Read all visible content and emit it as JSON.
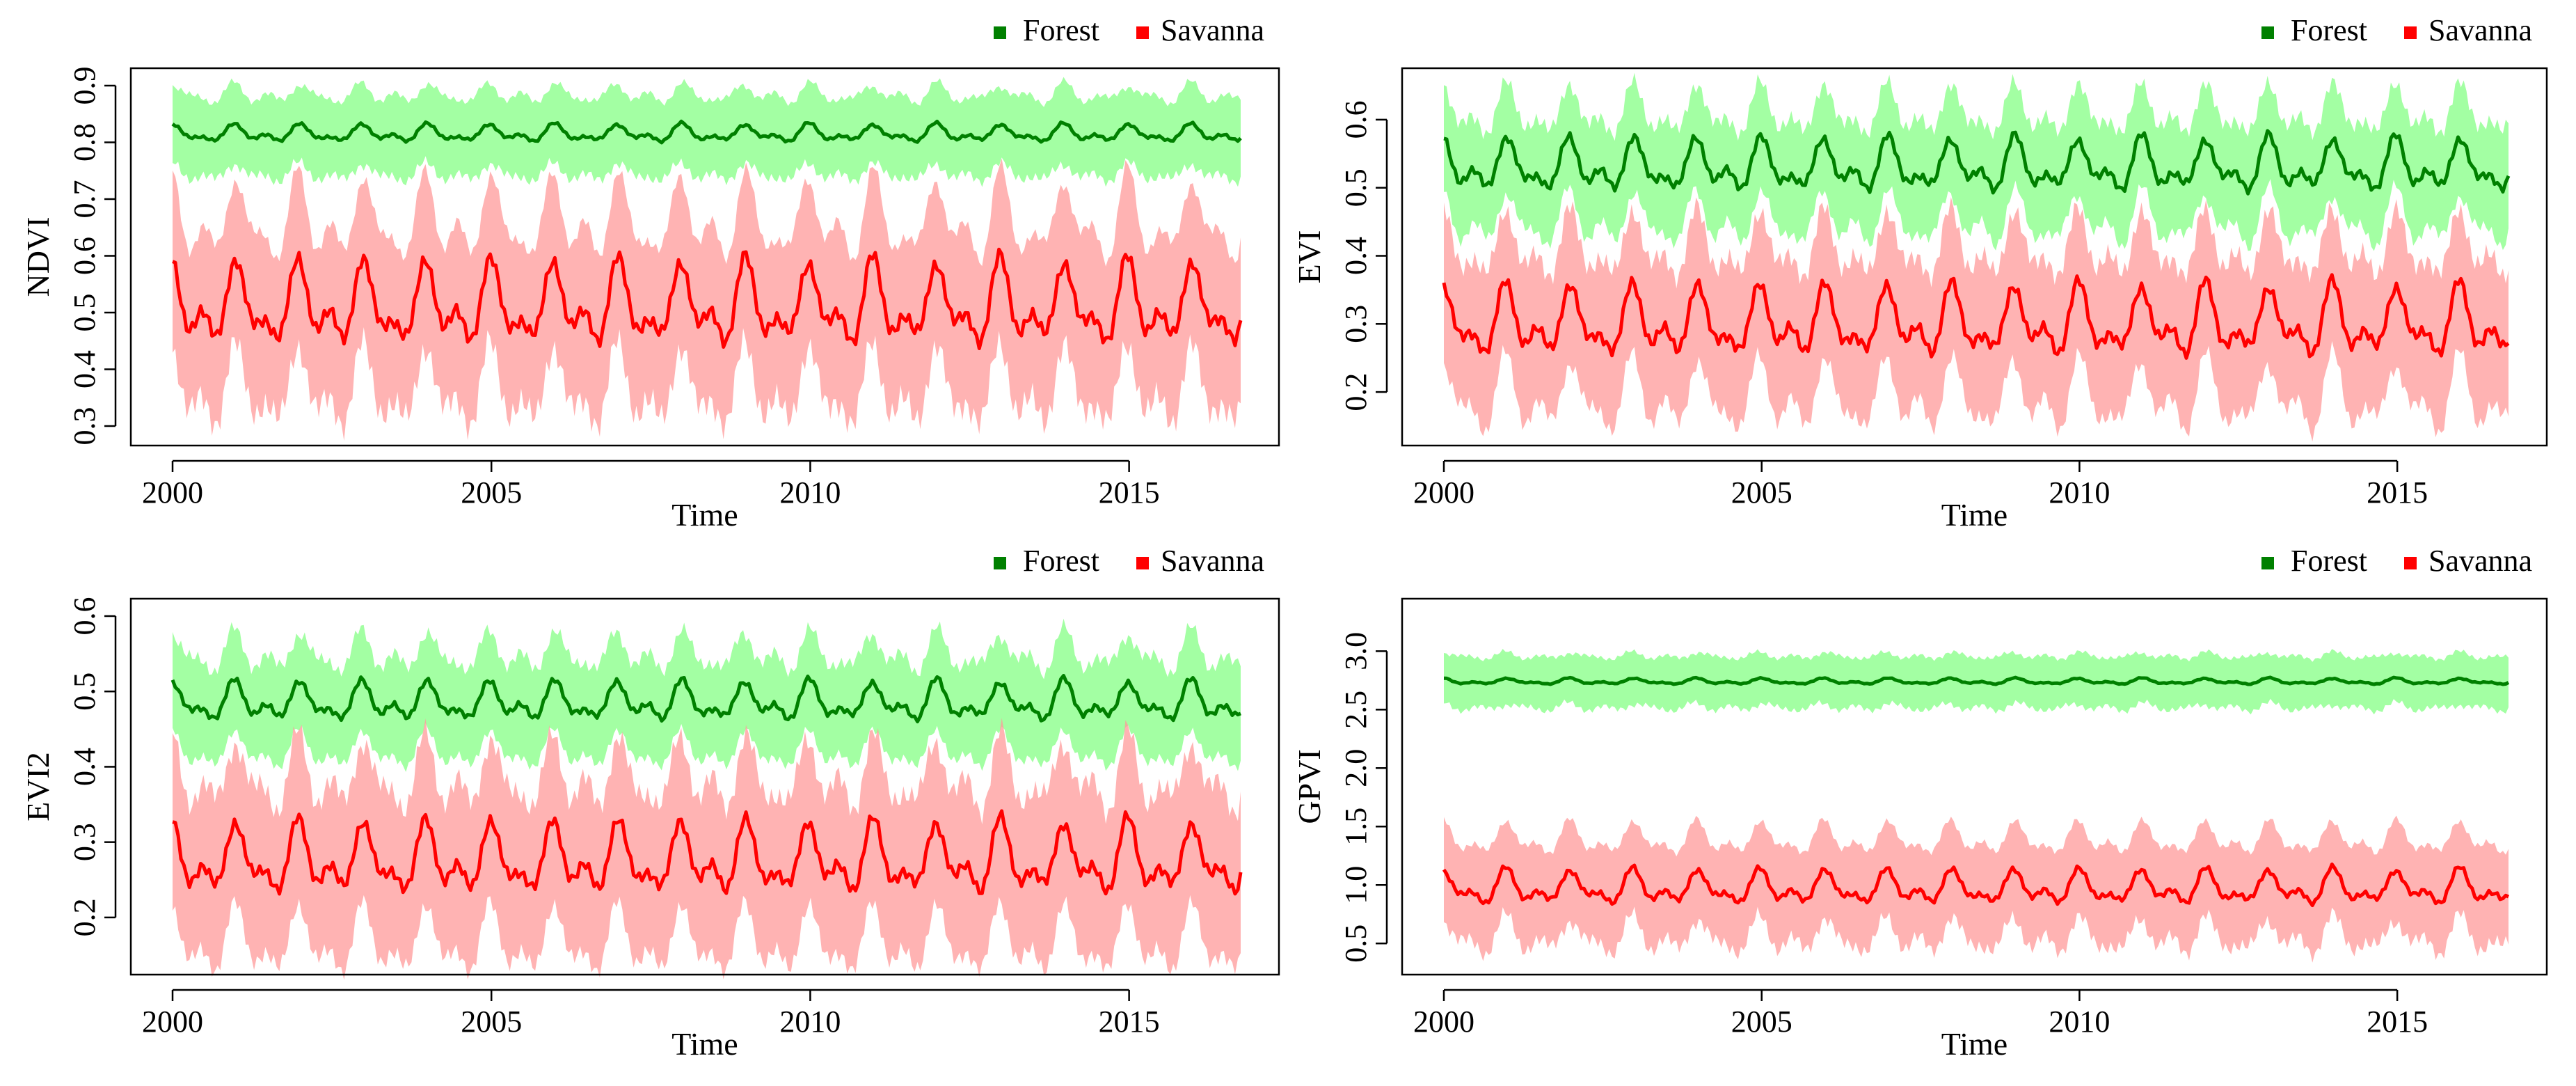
{
  "colors": {
    "forest_line": "#008000",
    "forest_band": "#99ff99",
    "savanna_line": "#ff0000",
    "savanna_band": "#ff9999",
    "frame": "#000000"
  },
  "chart_data": [
    {
      "type": "area",
      "title": "",
      "xlabel": "Time",
      "ylabel": "NDVI",
      "xlim": [
        2000,
        2016.75
      ],
      "ylim": [
        0.3,
        0.9
      ],
      "xticks": [
        "2000",
        "2005",
        "2010",
        "2015"
      ],
      "yticks": [
        "0.3",
        "0.4",
        "0.5",
        "0.6",
        "0.7",
        "0.8",
        "0.9"
      ],
      "legend": [
        "Forest",
        "Savanna"
      ],
      "legend_position": "top-right",
      "series": [
        {
          "name": "Forest",
          "type": "line+band",
          "mean": 0.815,
          "amplitude": 0.018,
          "band_halfwidth": 0.07,
          "period_years": 1,
          "phase": 0.0
        },
        {
          "name": "Savanna",
          "type": "line+band",
          "mean": 0.51,
          "amplitude": 0.085,
          "band_halfwidth": 0.15,
          "period_years": 1,
          "phase": 0.0
        }
      ]
    },
    {
      "type": "area",
      "title": "",
      "xlabel": "Time",
      "ylabel": "EVI",
      "xlim": [
        2000,
        2016.75
      ],
      "ylim": [
        0.15,
        0.65
      ],
      "xticks": [
        "2000",
        "2005",
        "2010",
        "2015"
      ],
      "yticks": [
        "0.2",
        "0.3",
        "0.4",
        "0.5",
        "0.6"
      ],
      "legend": [
        "Forest",
        "Savanna"
      ],
      "legend_position": "top-right",
      "series": [
        {
          "name": "Forest",
          "type": "line+band",
          "mean": 0.53,
          "amplitude": 0.045,
          "band_halfwidth": 0.08,
          "period_years": 1,
          "phase": 0.0
        },
        {
          "name": "Savanna",
          "type": "line+band",
          "mean": 0.3,
          "amplitude": 0.06,
          "band_halfwidth": 0.11,
          "period_years": 1,
          "phase": 0.0
        }
      ]
    },
    {
      "type": "area",
      "title": "",
      "xlabel": "Time",
      "ylabel": "EVI2",
      "xlim": [
        2000,
        2016.75
      ],
      "ylim": [
        0.15,
        0.6
      ],
      "xticks": [
        "2000",
        "2005",
        "2010",
        "2015"
      ],
      "yticks": [
        "0.2",
        "0.3",
        "0.4",
        "0.5",
        "0.6"
      ],
      "legend": [
        "Forest",
        "Savanna"
      ],
      "legend_position": "top-right",
      "series": [
        {
          "name": "Forest",
          "type": "line+band",
          "mean": 0.485,
          "amplitude": 0.03,
          "band_halfwidth": 0.065,
          "period_years": 1,
          "phase": 0.0
        },
        {
          "name": "Savanna",
          "type": "line+band",
          "mean": 0.275,
          "amplitude": 0.055,
          "band_halfwidth": 0.11,
          "period_years": 1,
          "phase": 0.0
        }
      ]
    },
    {
      "type": "area",
      "title": "",
      "xlabel": "Time",
      "ylabel": "GPVI",
      "xlim": [
        2000,
        2016.75
      ],
      "ylim": [
        0.4,
        3.3
      ],
      "xticks": [
        "2000",
        "2005",
        "2010",
        "2015"
      ],
      "yticks": [
        "0.5",
        "1.0",
        "1.5",
        "2.0",
        "2.5",
        "3.0"
      ],
      "legend": [
        "Forest",
        "Savanna"
      ],
      "legend_position": "top-right",
      "series": [
        {
          "name": "Forest",
          "type": "line+band",
          "mean": 2.74,
          "amplitude": 0.03,
          "band_halfwidth": 0.22,
          "period_years": 1,
          "phase": 0.0
        },
        {
          "name": "Savanna",
          "type": "line+band",
          "mean": 0.97,
          "amplitude": 0.17,
          "band_halfwidth": 0.42,
          "period_years": 1,
          "phase": 0.0
        }
      ]
    }
  ]
}
